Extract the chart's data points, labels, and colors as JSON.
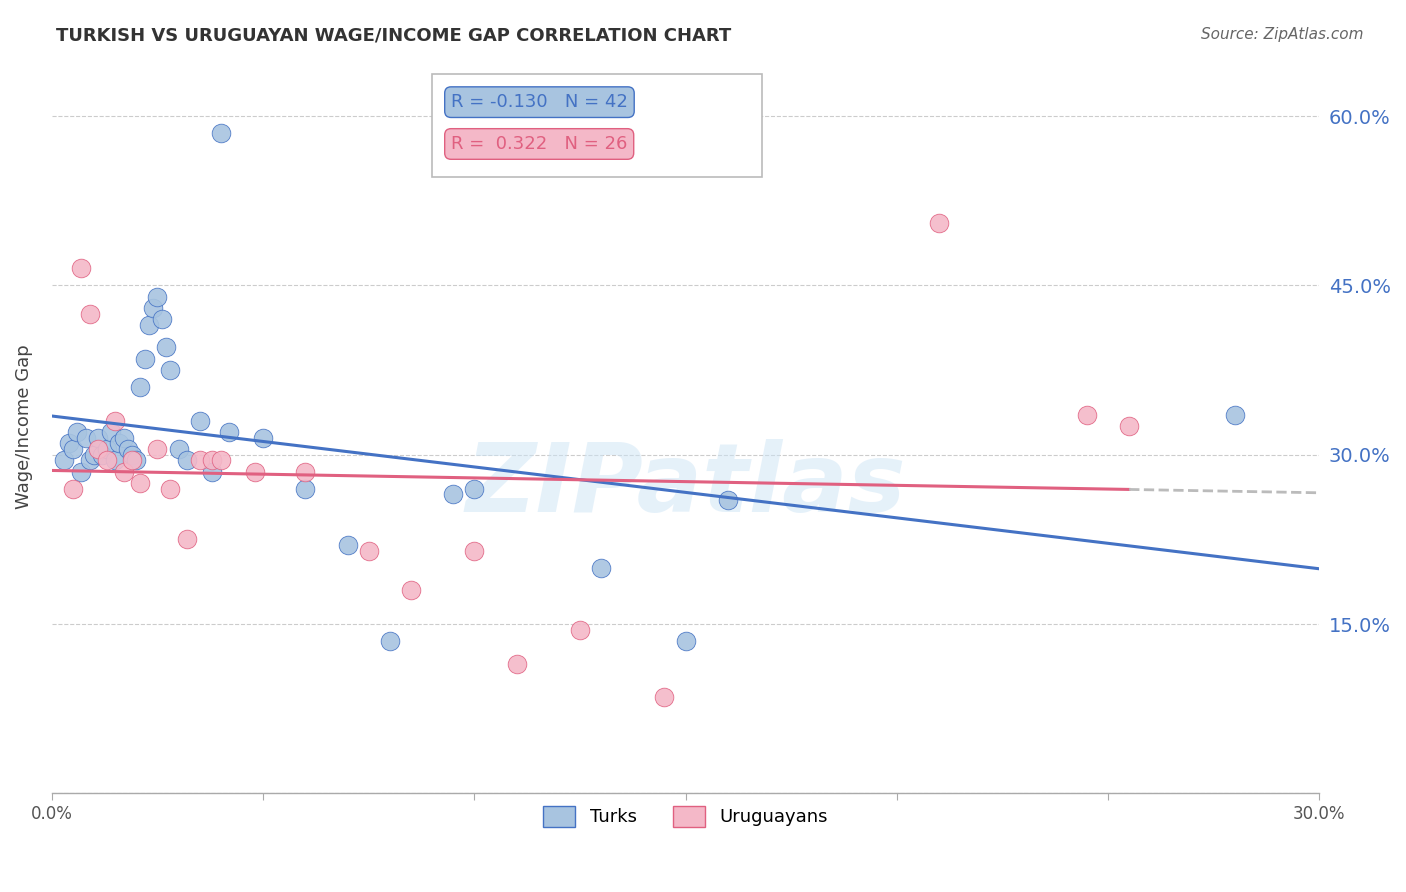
{
  "title": "TURKISH VS URUGUAYAN WAGE/INCOME GAP CORRELATION CHART",
  "source": "Source: ZipAtlas.com",
  "ylabel": "Wage/Income Gap",
  "xmin": 0.0,
  "xmax": 0.3,
  "ymin": 0.0,
  "ymax": 0.65,
  "yticks": [
    0.0,
    0.15,
    0.3,
    0.45,
    0.6
  ],
  "ytick_labels": [
    "",
    "15.0%",
    "30.0%",
    "45.0%",
    "60.0%"
  ],
  "xticks": [
    0.0,
    0.05,
    0.1,
    0.15,
    0.2,
    0.25,
    0.3
  ],
  "xtick_labels": [
    "0.0%",
    "",
    "",
    "",
    "",
    "",
    "30.0%"
  ],
  "blue_R": -0.13,
  "blue_N": 42,
  "pink_R": 0.322,
  "pink_N": 26,
  "legend_label_blue": "Turks",
  "legend_label_pink": "Uruguayans",
  "blue_color": "#a8c4e0",
  "pink_color": "#f4b8c8",
  "blue_line_color": "#4472C4",
  "pink_line_color": "#e06080",
  "dash_line_color": "#bbbbbb",
  "watermark": "ZIPatlas",
  "blue_dots_x": [
    0.003,
    0.004,
    0.005,
    0.006,
    0.007,
    0.008,
    0.009,
    0.01,
    0.011,
    0.012,
    0.013,
    0.014,
    0.015,
    0.016,
    0.017,
    0.018,
    0.019,
    0.02,
    0.021,
    0.022,
    0.023,
    0.024,
    0.025,
    0.026,
    0.027,
    0.028,
    0.03,
    0.032,
    0.035,
    0.038,
    0.042,
    0.05,
    0.06,
    0.07,
    0.08,
    0.095,
    0.1,
    0.13,
    0.15,
    0.16,
    0.28,
    0.04
  ],
  "blue_dots_y": [
    0.295,
    0.31,
    0.305,
    0.32,
    0.285,
    0.315,
    0.295,
    0.3,
    0.315,
    0.3,
    0.305,
    0.32,
    0.295,
    0.31,
    0.315,
    0.305,
    0.3,
    0.295,
    0.36,
    0.385,
    0.415,
    0.43,
    0.44,
    0.42,
    0.395,
    0.375,
    0.305,
    0.295,
    0.33,
    0.285,
    0.32,
    0.315,
    0.27,
    0.22,
    0.135,
    0.265,
    0.27,
    0.2,
    0.135,
    0.26,
    0.335,
    0.585
  ],
  "pink_dots_x": [
    0.005,
    0.007,
    0.009,
    0.011,
    0.013,
    0.015,
    0.017,
    0.019,
    0.021,
    0.025,
    0.028,
    0.032,
    0.035,
    0.038,
    0.04,
    0.048,
    0.06,
    0.075,
    0.085,
    0.1,
    0.11,
    0.125,
    0.145,
    0.21,
    0.245,
    0.255
  ],
  "pink_dots_y": [
    0.27,
    0.465,
    0.425,
    0.305,
    0.295,
    0.33,
    0.285,
    0.295,
    0.275,
    0.305,
    0.27,
    0.225,
    0.295,
    0.295,
    0.295,
    0.285,
    0.285,
    0.215,
    0.18,
    0.215,
    0.115,
    0.145,
    0.085,
    0.505,
    0.335,
    0.325
  ]
}
